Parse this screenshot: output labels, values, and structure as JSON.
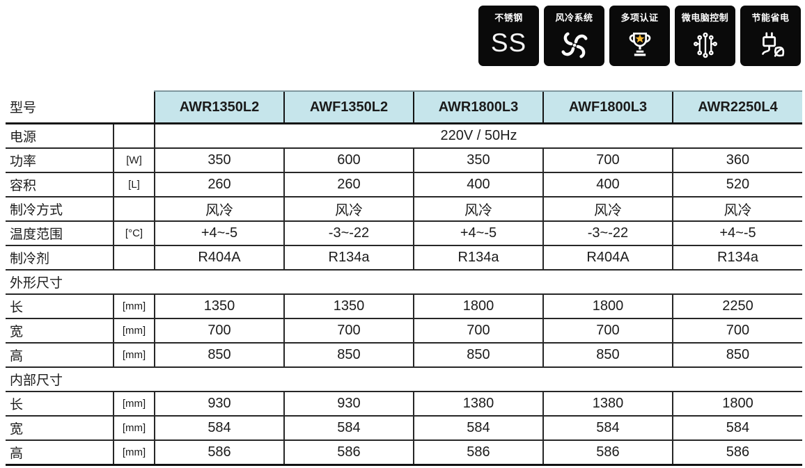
{
  "badges": [
    {
      "label": "不锈钢",
      "text": "SS"
    },
    {
      "label": "风冷系统"
    },
    {
      "label": "多项认证"
    },
    {
      "label": "微电脑控制"
    },
    {
      "label": "节能省电"
    }
  ],
  "colors": {
    "badge_bg": "#0a0a0a",
    "table_header_bg": "#c6e5eb",
    "border": "#262626",
    "star_gold": "#f2b42d"
  },
  "table": {
    "header": {
      "label": "型号",
      "models": [
        "AWR1350L2",
        "AWF1350L2",
        "AWR1800L3",
        "AWF1800L3",
        "AWR2250L4"
      ]
    },
    "rows": [
      {
        "type": "merged",
        "label": "电源",
        "unit": "",
        "value": "220V / 50Hz"
      },
      {
        "type": "data",
        "label": "功率",
        "unit": "[W]",
        "values": [
          "350",
          "600",
          "350",
          "700",
          "360"
        ]
      },
      {
        "type": "data",
        "label": "容积",
        "unit": "[L]",
        "values": [
          "260",
          "260",
          "400",
          "400",
          "520"
        ]
      },
      {
        "type": "data",
        "label": "制冷方式",
        "unit": "",
        "values": [
          "风冷",
          "风冷",
          "风冷",
          "风冷",
          "风冷"
        ]
      },
      {
        "type": "data",
        "label": "温度范围",
        "unit": "[°C]",
        "values": [
          "+4~-5",
          "-3~-22",
          "+4~-5",
          "-3~-22",
          "+4~-5"
        ]
      },
      {
        "type": "data",
        "label": "制冷剂",
        "unit": "",
        "values": [
          "R404A",
          "R134a",
          "R134a",
          "R404A",
          "R134a"
        ]
      },
      {
        "type": "section",
        "label": "外形尺寸"
      },
      {
        "type": "data",
        "label": "长",
        "unit": "[mm]",
        "values": [
          "1350",
          "1350",
          "1800",
          "1800",
          "2250"
        ]
      },
      {
        "type": "data",
        "label": "宽",
        "unit": "[mm]",
        "values": [
          "700",
          "700",
          "700",
          "700",
          "700"
        ]
      },
      {
        "type": "data",
        "label": "高",
        "unit": "[mm]",
        "values": [
          "850",
          "850",
          "850",
          "850",
          "850"
        ]
      },
      {
        "type": "section",
        "label": "内部尺寸"
      },
      {
        "type": "data",
        "label": "长",
        "unit": "[mm]",
        "values": [
          "930",
          "930",
          "1380",
          "1380",
          "1800"
        ]
      },
      {
        "type": "data",
        "label": "宽",
        "unit": "[mm]",
        "values": [
          "584",
          "584",
          "584",
          "584",
          "584"
        ]
      },
      {
        "type": "data",
        "label": "高",
        "unit": "[mm]",
        "values": [
          "586",
          "586",
          "586",
          "586",
          "586"
        ]
      }
    ]
  }
}
